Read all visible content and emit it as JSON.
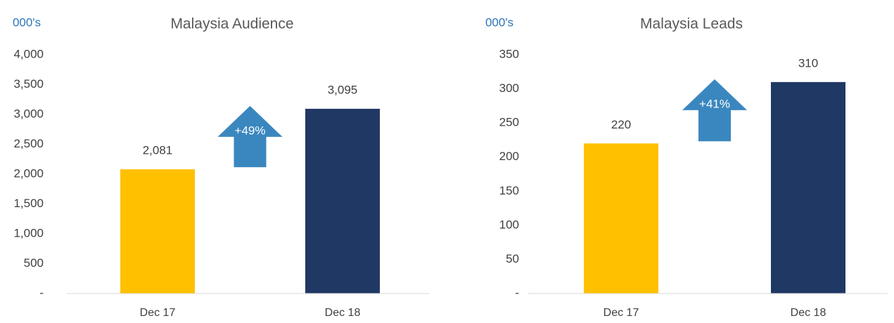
{
  "chart_data": [
    {
      "type": "bar",
      "title": "Malaysia Audience",
      "y_unit": "000's",
      "categories": [
        "Dec 17",
        "Dec 18"
      ],
      "values": [
        2081,
        3095
      ],
      "value_labels": [
        "2,081",
        "3,095"
      ],
      "colors": [
        "#FFC000",
        "#203864"
      ],
      "ylim": [
        0,
        4000
      ],
      "yticks": [
        {
          "value": 0,
          "label": "-"
        },
        500,
        {
          "value": 1000,
          "label": "1,000"
        },
        {
          "value": 1500,
          "label": "1,500"
        },
        {
          "value": 2000,
          "label": "2,000"
        },
        {
          "value": 2500,
          "label": "2,500"
        },
        {
          "value": 3000,
          "label": "3,000"
        },
        {
          "value": 3500,
          "label": "3,500"
        },
        {
          "value": 4000,
          "label": "4,000"
        }
      ],
      "grid": false,
      "annotation": "+49%",
      "annotation_color": "#3A87BF"
    },
    {
      "type": "bar",
      "title": "Malaysia Leads",
      "y_unit": "000's",
      "categories": [
        "Dec 17",
        "Dec 18"
      ],
      "values": [
        220,
        310
      ],
      "colors": [
        "#FFC000",
        "#203864"
      ],
      "ylim": [
        0,
        350
      ],
      "yticks": [
        {
          "value": 0,
          "label": "-"
        },
        50,
        100,
        150,
        200,
        250,
        300,
        350
      ],
      "grid": false,
      "annotation": "+41%",
      "annotation_color": "#3A87BF"
    }
  ]
}
